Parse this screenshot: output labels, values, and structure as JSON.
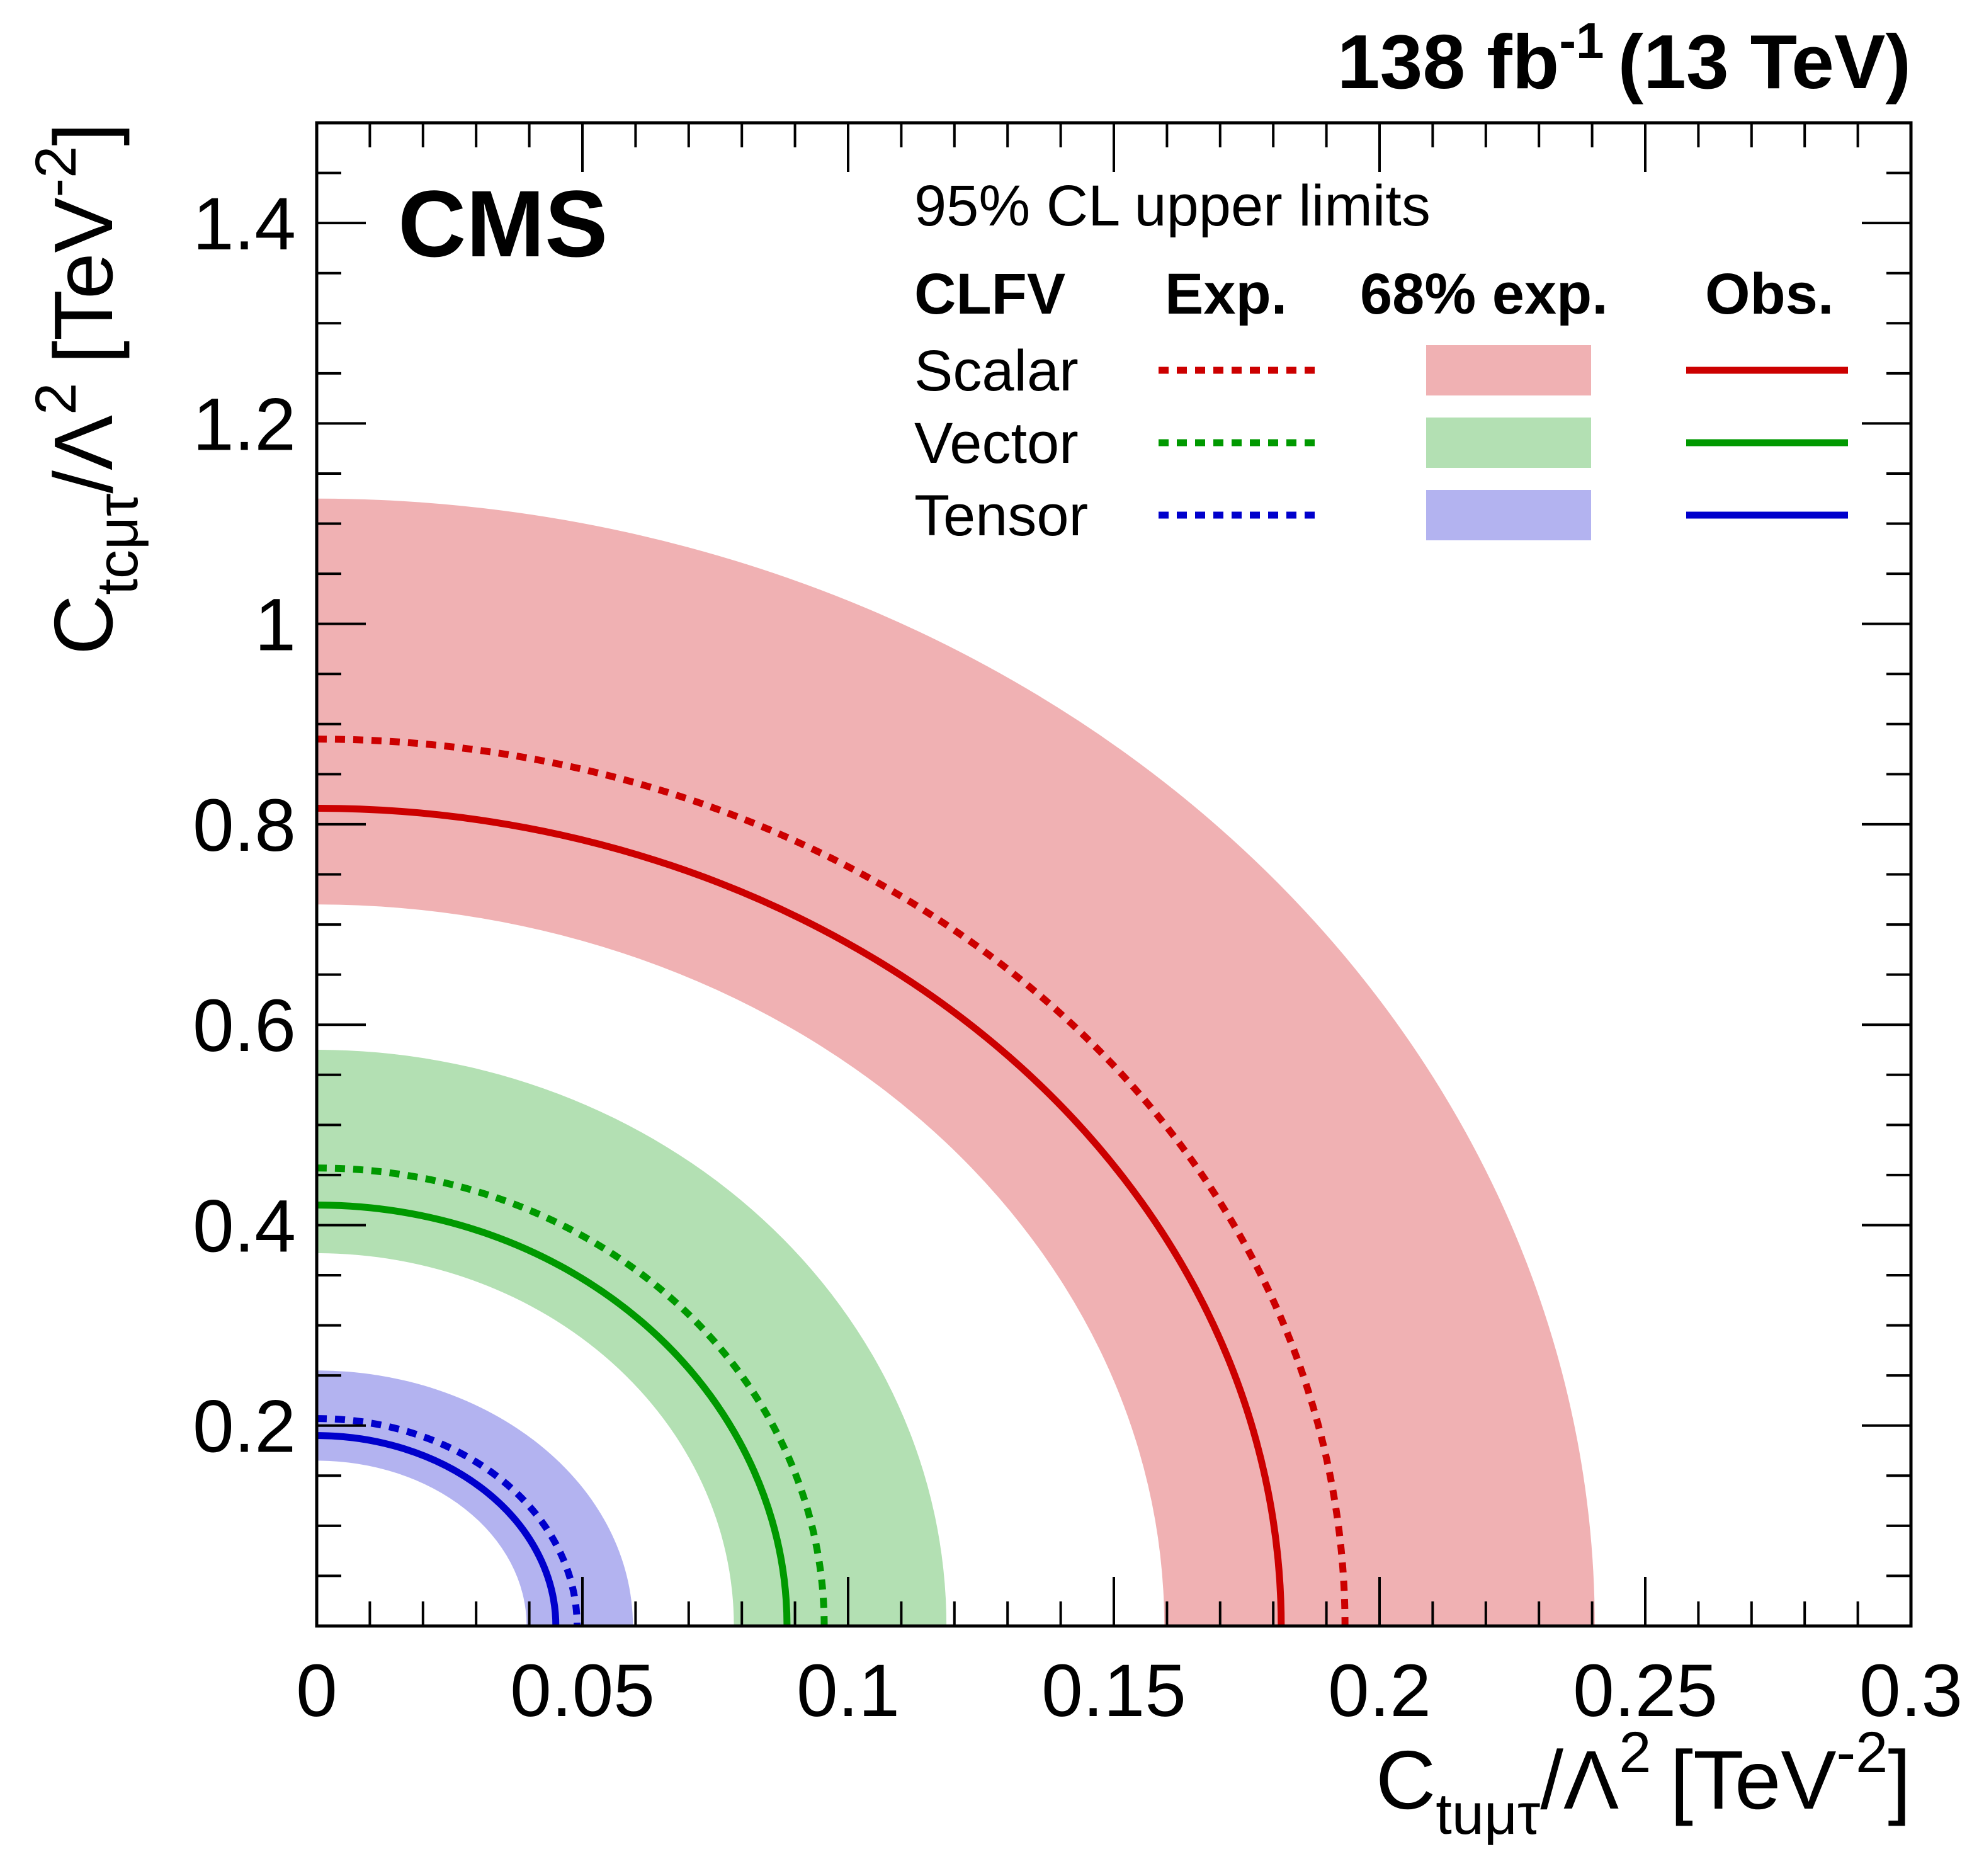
{
  "chart_data": {
    "type": "line",
    "title": "",
    "top_right_label": {
      "main": "138 fb",
      "sup": "-1",
      "tail": "(13 TeV)"
    },
    "experiment_label": "CMS",
    "xlabel": {
      "main": "C",
      "sub": "tuμτ",
      "mid": "/Λ",
      "sup": "2",
      "unit": "[TeV",
      "unit_sup": "-2",
      "unit_close": "]"
    },
    "ylabel": {
      "main": "C",
      "sub": "tcμτ",
      "mid": "/Λ",
      "sup": "2",
      "unit": "[TeV",
      "unit_sup": "-2",
      "unit_close": "]"
    },
    "xlim": [
      0,
      0.3
    ],
    "ylim": [
      0,
      1.5
    ],
    "x_ticks": [
      {
        "value": 0,
        "label": "0"
      },
      {
        "value": 0.05,
        "label": "0.05"
      },
      {
        "value": 0.1,
        "label": "0.1"
      },
      {
        "value": 0.15,
        "label": "0.15"
      },
      {
        "value": 0.2,
        "label": "0.2"
      },
      {
        "value": 0.25,
        "label": "0.25"
      },
      {
        "value": 0.3,
        "label": "0.3"
      }
    ],
    "y_ticks": [
      {
        "value": 0.2,
        "label": "0.2"
      },
      {
        "value": 0.4,
        "label": "0.4"
      },
      {
        "value": 0.6,
        "label": "0.6"
      },
      {
        "value": 0.8,
        "label": "0.8"
      },
      {
        "value": 1.0,
        "label": "1"
      },
      {
        "value": 1.2,
        "label": "1.2"
      },
      {
        "value": 1.4,
        "label": "1.4"
      }
    ],
    "grid": false,
    "legend": {
      "placement": "top-right",
      "title": "95% CL upper limits",
      "headers": [
        "CLFV",
        "Exp.",
        "68% exp.",
        "Obs."
      ],
      "rows": [
        "Scalar",
        "Vector",
        "Tensor"
      ]
    },
    "series": [
      {
        "name": "Scalar",
        "color": "#cc0000",
        "band_color": "#f0b1b3",
        "expected": {
          "x_intercept": 0.1935,
          "y_intercept": 0.885
        },
        "observed": {
          "x_intercept": 0.1815,
          "y_intercept": 0.816
        },
        "band_68": {
          "inner": {
            "x_intercept": 0.1595,
            "y_intercept": 0.72
          },
          "outer": {
            "x_intercept": 0.2405,
            "y_intercept": 1.125
          }
        }
      },
      {
        "name": "Vector",
        "color": "#009900",
        "band_color": "#b3e0b3",
        "expected": {
          "x_intercept": 0.0955,
          "y_intercept": 0.457
        },
        "observed": {
          "x_intercept": 0.0885,
          "y_intercept": 0.42
        },
        "band_68": {
          "inner": {
            "x_intercept": 0.0785,
            "y_intercept": 0.372
          },
          "outer": {
            "x_intercept": 0.1185,
            "y_intercept": 0.575
          }
        }
      },
      {
        "name": "Tensor",
        "color": "#0000cc",
        "band_color": "#b3b3f0",
        "expected": {
          "x_intercept": 0.049,
          "y_intercept": 0.207
        },
        "observed": {
          "x_intercept": 0.045,
          "y_intercept": 0.19
        },
        "band_68": {
          "inner": {
            "x_intercept": 0.0395,
            "y_intercept": 0.165
          },
          "outer": {
            "x_intercept": 0.0595,
            "y_intercept": 0.255
          }
        }
      }
    ]
  }
}
